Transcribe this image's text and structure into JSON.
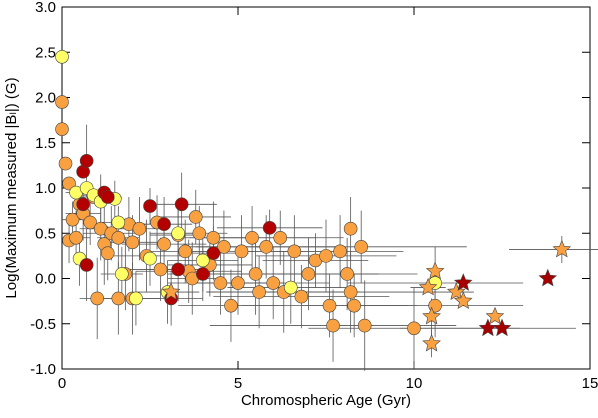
{
  "chart_data": {
    "type": "scatter",
    "xlabel": "Chromospheric Age (Gyr)",
    "ylabel": "Log(Maximum measured |Bₗ|) (G)",
    "xlim": [
      0,
      15
    ],
    "ylim": [
      -1,
      3
    ],
    "xticks": [
      0,
      5,
      10,
      15
    ],
    "yticks": [
      {
        "value": -1,
        "label": "-1.0"
      },
      {
        "value": -0.5,
        "label": "-0.5"
      },
      {
        "value": 0,
        "label": "0.0"
      },
      {
        "value": 0.5,
        "label": "0.5"
      },
      {
        "value": 1,
        "label": "1.0"
      },
      {
        "value": 1.5,
        "label": "1.5"
      },
      {
        "value": 2,
        "label": "2.0"
      },
      {
        "value": 2.5,
        "label": "2.5"
      },
      {
        "value": 3,
        "label": "3.0"
      }
    ],
    "series": [
      {
        "marker": "circle",
        "color": "#f9a040",
        "x": [
          0,
          0,
          0.1,
          0.2,
          0.3,
          0.2,
          0.4,
          0.5,
          0.6,
          0.8,
          0.9,
          1.1,
          1.2,
          1.3,
          1.4,
          1.6,
          1.8,
          1.9,
          2.0,
          2.2,
          2.4,
          2.7,
          2.8,
          2.9,
          3.3,
          3.5,
          3.6,
          3.8,
          3.9,
          4.2,
          4.3,
          4.5,
          4.6,
          4.8,
          5.0,
          5.1,
          5.4,
          5.5,
          5.6,
          5.8,
          6.0,
          6.2,
          6.3,
          6.6,
          6.8,
          7.0,
          7.2,
          7.5,
          7.6,
          7.9,
          8.1,
          8.2,
          8.3,
          8.6,
          8.5,
          8.2,
          7.7,
          10.0,
          10.6,
          1.0,
          1.6,
          2.0,
          3.7
        ],
        "values": [
          1.95,
          1.65,
          1.27,
          1.05,
          0.65,
          0.42,
          0.45,
          0.82,
          0.72,
          0.62,
          0.9,
          0.55,
          0.38,
          0.28,
          0.5,
          0.45,
          0.05,
          0.6,
          0.4,
          0.55,
          0.25,
          0.62,
          0.1,
          0.38,
          0.48,
          0.3,
          0.08,
          0.68,
          0.5,
          0.15,
          0.45,
          -0.05,
          0.35,
          -0.3,
          -0.05,
          0.3,
          0.45,
          0.05,
          -0.15,
          0.35,
          -0.05,
          0.45,
          -0.15,
          0.3,
          -0.2,
          0.05,
          0.2,
          0.25,
          -0.3,
          0.3,
          0.05,
          -0.15,
          -0.3,
          -0.52,
          0.35,
          0.55,
          -0.52,
          -0.55,
          -0.3,
          -0.22,
          -0.22,
          -0.22,
          0.0
        ],
        "xerr": [
          null,
          null,
          null,
          null,
          0.3,
          null,
          0.4,
          null,
          0.5,
          null,
          0.4,
          0.6,
          null,
          null,
          0.8,
          0.6,
          null,
          0.5,
          0.7,
          0.8,
          1.0,
          null,
          0.9,
          1.2,
          0.8,
          1.0,
          1.5,
          1.0,
          0.8,
          1.2,
          1.0,
          1.5,
          1.2,
          1.5,
          1.3,
          1.5,
          1.8,
          1.2,
          1.5,
          2.0,
          1.6,
          1.8,
          2.2,
          1.5,
          2.5,
          2.0,
          1.5,
          2.0,
          2.5,
          1.8,
          2.0,
          2.5,
          1.5,
          null,
          3.0,
          null,
          3.5,
          3.0,
          2.5,
          0.5,
          0.6,
          0.8,
          0.7
        ],
        "yerr": [
          null,
          null,
          null,
          null,
          0.2,
          0.25,
          0.3,
          null,
          0.3,
          0.25,
          null,
          0.35,
          0.45,
          0.3,
          0.3,
          0.35,
          0.4,
          0.3,
          0.3,
          0.35,
          0.4,
          0.3,
          0.35,
          0.3,
          0.3,
          0.35,
          0.35,
          0.3,
          0.3,
          0.35,
          0.4,
          0.35,
          0.4,
          0.4,
          0.35,
          0.4,
          0.35,
          0.45,
          0.4,
          0.35,
          0.4,
          0.3,
          0.45,
          0.4,
          0.35,
          0.4,
          0.3,
          0.4,
          0.35,
          0.4,
          0.4,
          0.45,
          0.35,
          0.5,
          0.4,
          0.35,
          0.4,
          0.45,
          0.35,
          0.45,
          0.4,
          0.4,
          0.4
        ]
      },
      {
        "marker": "circle",
        "color": "#ffff66",
        "x": [
          0,
          0.4,
          0.5,
          0.7,
          0.9,
          1.1,
          1.5,
          1.6,
          1.7,
          2.1,
          2.5,
          3.0,
          3.3,
          4.0,
          6.5,
          10.6
        ],
        "values": [
          2.45,
          0.95,
          0.22,
          1.0,
          0.92,
          0.85,
          0.88,
          0.62,
          0.05,
          -0.22,
          0.22,
          -0.15,
          0.5,
          0.2,
          -0.1,
          -0.05
        ],
        "xerr": [
          null,
          0.3,
          null,
          null,
          0.4,
          0.4,
          null,
          0.5,
          0.6,
          0.7,
          null,
          0.9,
          0.8,
          1.0,
          1.8,
          2.5
        ],
        "yerr": [
          null,
          null,
          0.3,
          null,
          null,
          0.3,
          0.2,
          null,
          0.3,
          0.3,
          0.3,
          0.35,
          0.3,
          0.35,
          0.4,
          0.4
        ]
      },
      {
        "marker": "circle",
        "color": "#b30000",
        "x": [
          0.6,
          0.6,
          0.7,
          1.2,
          1.3,
          2.5,
          2.9,
          3.4,
          3.1,
          3.3,
          4.0,
          4.3,
          5.9,
          0.7
        ],
        "values": [
          1.18,
          0.82,
          1.3,
          0.95,
          0.9,
          0.8,
          0.6,
          0.82,
          -0.22,
          0.1,
          0.05,
          0.28,
          0.56,
          0.15
        ],
        "xerr": [
          null,
          null,
          null,
          null,
          0.4,
          null,
          0.8,
          1.0,
          0.9,
          0.8,
          1.0,
          1.0,
          1.5,
          null
        ],
        "yerr": [
          null,
          null,
          0.4,
          null,
          null,
          0.2,
          0.3,
          0.35,
          0.3,
          0.35,
          0.3,
          0.3,
          0.2,
          0.4
        ]
      },
      {
        "marker": "star",
        "color": "#f9a040",
        "x": [
          3.1,
          10.4,
          10.6,
          10.5,
          10.5,
          11.2,
          11.4,
          12.3,
          14.2
        ],
        "values": [
          -0.15,
          -0.1,
          0.08,
          -0.42,
          -0.72,
          -0.15,
          -0.25,
          -0.42,
          0.32
        ],
        "xerr": [
          null,
          0.5,
          null,
          null,
          null,
          0.5,
          null,
          null,
          1.5
        ],
        "yerr": [
          null,
          null,
          0.1,
          0.2,
          0.15,
          null,
          null,
          null,
          0.15
        ]
      },
      {
        "marker": "star",
        "color": "#a50000",
        "x": [
          11.4,
          12.1,
          12.5,
          13.8
        ],
        "values": [
          -0.05,
          -0.55,
          -0.55,
          0.0
        ],
        "xerr": [
          null,
          2.5,
          null,
          null
        ],
        "yerr": [
          null,
          null,
          null,
          null
        ]
      }
    ]
  }
}
